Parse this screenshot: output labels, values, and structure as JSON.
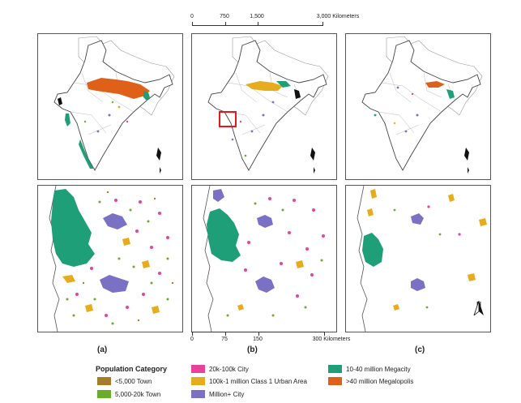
{
  "scalebars": {
    "top": {
      "ticks": [
        "0",
        "750",
        "1,500",
        "3,000 Kilometers"
      ]
    },
    "bottom": {
      "ticks": [
        "0",
        "75",
        "150",
        "300 Kilometers"
      ]
    }
  },
  "panels": [
    {
      "label": "(a)"
    },
    {
      "label": "(b)"
    },
    {
      "label": "(c)"
    }
  ],
  "north_arrow": {
    "letter": "N"
  },
  "legend": {
    "title": "Population Category",
    "items": [
      {
        "label": "<5,000 Town",
        "color": "#a67c2a"
      },
      {
        "label": "5,000-20k Town",
        "color": "#6aac2b"
      },
      {
        "label": "20k-100k City",
        "color": "#e8439a"
      },
      {
        "label": "100k-1 million Class 1 Urban Area",
        "color": "#e6ac1d"
      },
      {
        "label": "Million+ City",
        "color": "#7b71c4"
      },
      {
        "label": "10-40 million Megacity",
        "color": "#1f9f78"
      },
      {
        "label": ">40 million Megalopolis",
        "color": "#de6019"
      }
    ]
  },
  "colors": {
    "outline": "#444444",
    "state_boundary": "#b9b9b9",
    "neighbour_fill": "#ffffff",
    "inset_box": "#e0191b"
  }
}
